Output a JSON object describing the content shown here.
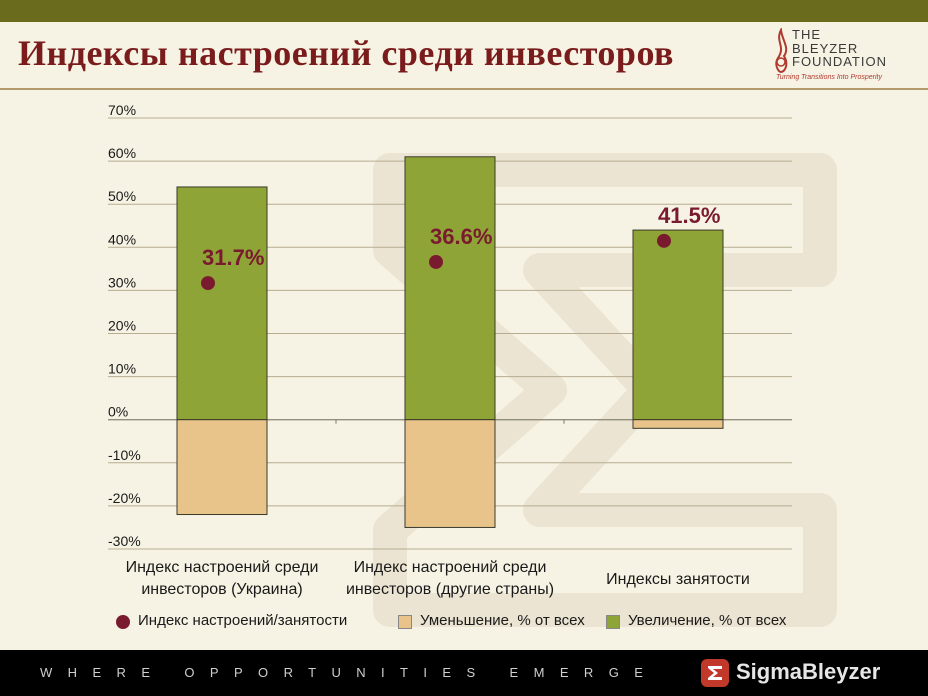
{
  "header": {
    "title": "Индексы настроений среди инвесторов",
    "logo_lines": [
      "THE",
      "BLEYZER",
      "FOUNDATION"
    ],
    "logo_tagline": "Turning Transitions Into Prosperity"
  },
  "footer": {
    "tagline": "WHERE OPPORTUNITIES EMERGE",
    "brand": "SigmaBleyzer"
  },
  "colors": {
    "title": "#7a1c1c",
    "increase": "#8fa436",
    "decrease": "#e8c38a",
    "index_dot": "#7a1a2e",
    "top_bar": "#6b6b1d"
  },
  "chart_data": {
    "type": "bar",
    "stacked": true,
    "categories": [
      [
        "Индекс настроений среди",
        "инвесторов (Украина)"
      ],
      [
        "Индекс настроений среди",
        "инвесторов (другие страны)"
      ],
      [
        "Индексы занятости"
      ]
    ],
    "series": [
      {
        "name": "Уменьшение, % от всех",
        "type": "bar",
        "color": "#e8c38a",
        "values": [
          -22,
          -25,
          -2
        ]
      },
      {
        "name": "Увеличение, % от всех",
        "type": "bar",
        "color": "#8fa436",
        "values": [
          54,
          61,
          44
        ]
      },
      {
        "name": "Индекс настроений/занятости",
        "type": "dot",
        "color": "#7a1a2e",
        "values": [
          31.7,
          36.6,
          41.5
        ],
        "labels": [
          "31.7%",
          "36.6%",
          "41.5%"
        ]
      }
    ],
    "ylim": [
      -30,
      70
    ],
    "yticks": [
      70,
      60,
      50,
      40,
      30,
      20,
      10,
      0,
      -10,
      -20,
      -30
    ],
    "ytick_labels": [
      "70%",
      "60%",
      "50%",
      "40%",
      "30%",
      "20%",
      "10%",
      "0%",
      "-10%",
      "-20%",
      "-30%"
    ],
    "grid": true,
    "legend_position": "bottom"
  }
}
